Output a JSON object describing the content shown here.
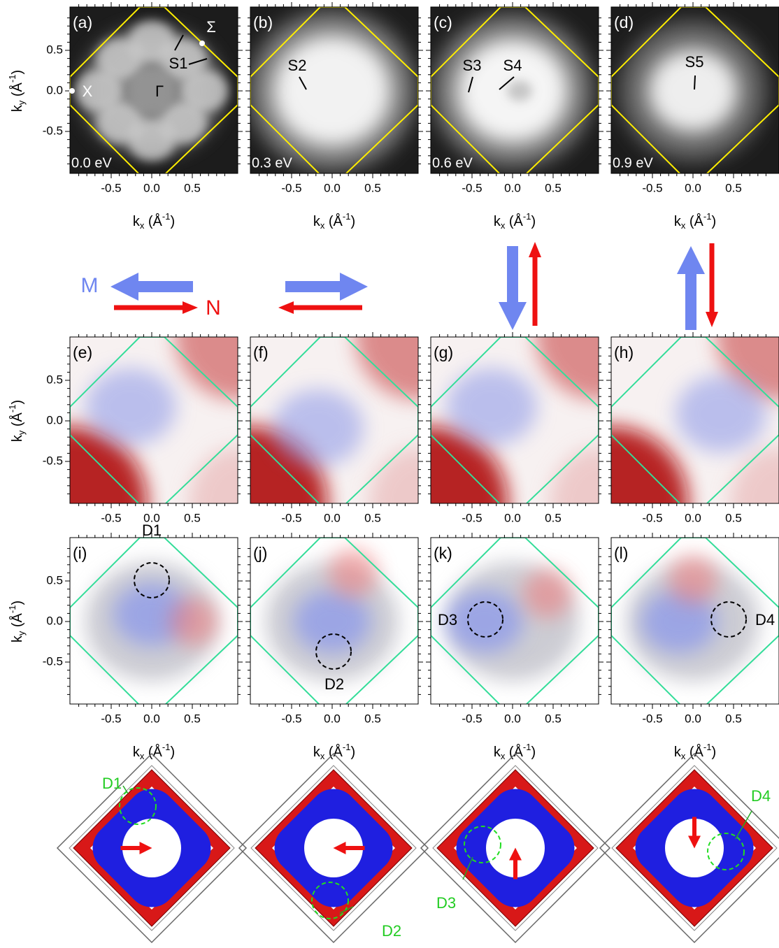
{
  "axes": {
    "x_ticks": [
      "-0.5",
      "0.0",
      "0.5"
    ],
    "y_ticks": [
      "0.5",
      "0.0",
      "-0.5"
    ],
    "x_title": {
      "k": "k",
      "sub": "x",
      "unit": " (Å",
      "sup": "-1",
      "end": ")"
    },
    "y_title": {
      "k": "k",
      "sub": "y",
      "unit": " (Å",
      "sup": "-1",
      "end": ")"
    }
  },
  "top_panels": [
    {
      "label": "(a)",
      "energy": "0.0 eV",
      "notes": [
        "S1",
        "Γ",
        "X",
        "Σ"
      ]
    },
    {
      "label": "(b)",
      "energy": "0.3 eV",
      "notes": [
        "S2"
      ]
    },
    {
      "label": "(c)",
      "energy": "0.6 eV",
      "notes": [
        "S3",
        "S4"
      ]
    },
    {
      "label": "(d)",
      "energy": "0.9 eV",
      "notes": [
        "S5"
      ]
    }
  ],
  "legend": {
    "m": "M",
    "n": "N"
  },
  "middle_panels": [
    {
      "label": "(e)"
    },
    {
      "label": "(f)"
    },
    {
      "label": "(g)"
    },
    {
      "label": "(h)"
    }
  ],
  "bottom_panels": [
    {
      "label": "(i)",
      "domain": "D1"
    },
    {
      "label": "(j)",
      "domain": "D2"
    },
    {
      "label": "(k)",
      "domain": "D3"
    },
    {
      "label": "(l)",
      "domain": "D4"
    }
  ],
  "models": [
    {
      "domain": "D1"
    },
    {
      "domain": "D2"
    },
    {
      "domain": "D3"
    },
    {
      "domain": "D4"
    }
  ]
}
